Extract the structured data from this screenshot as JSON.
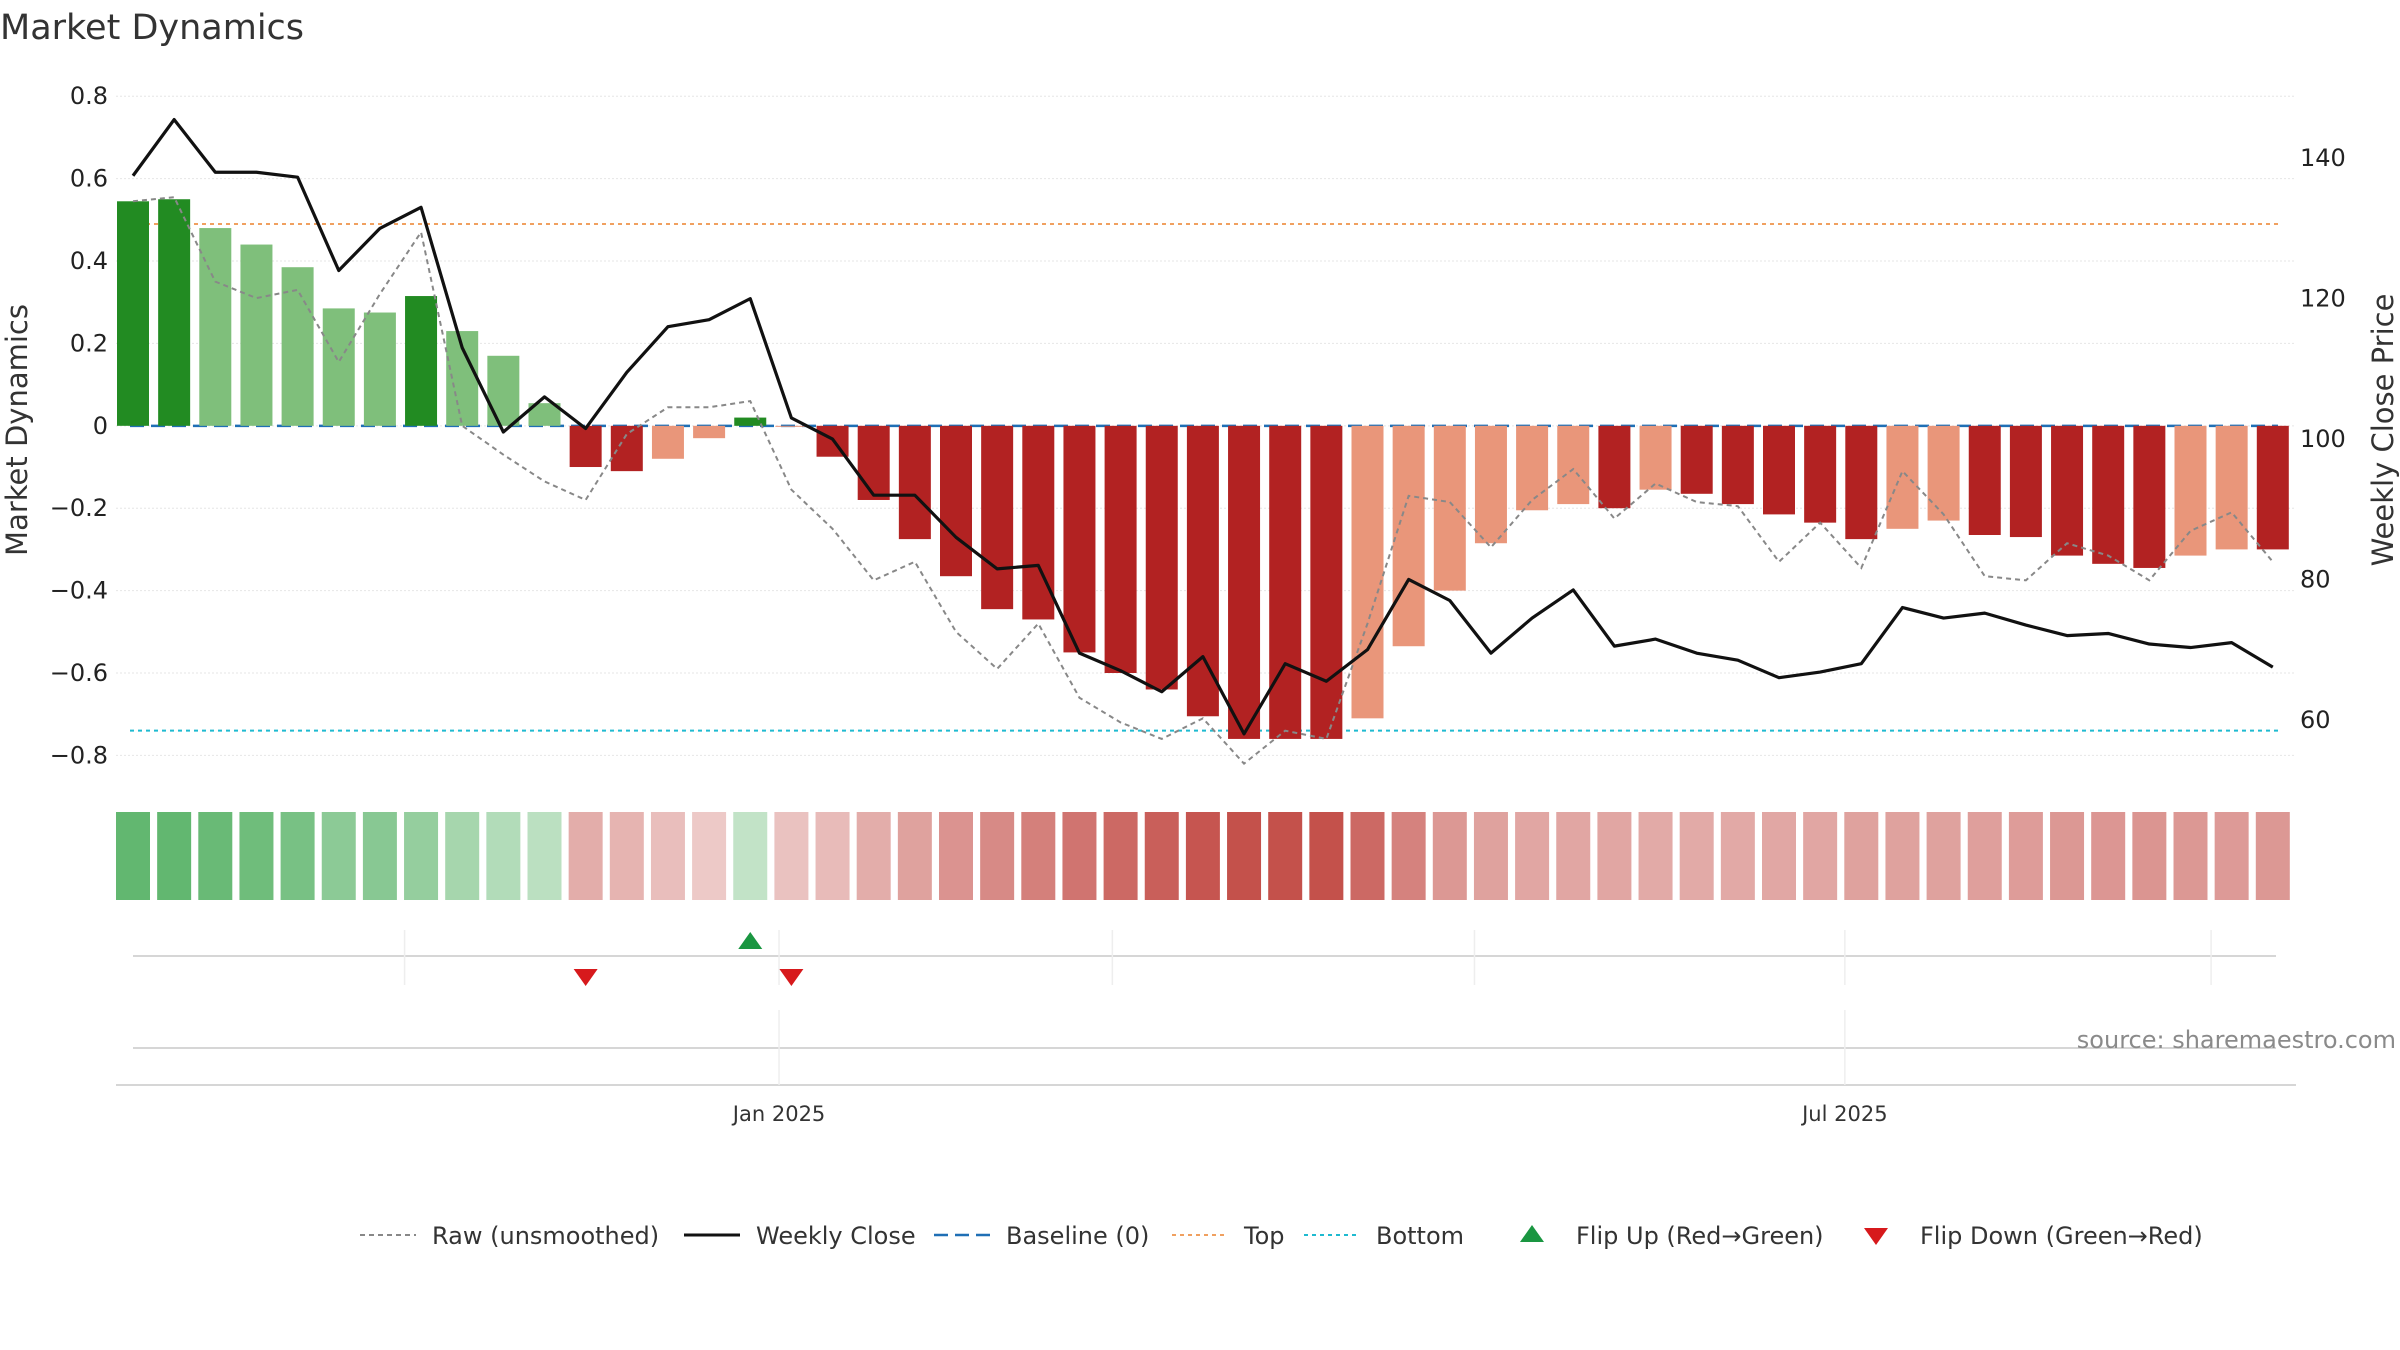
{
  "chart_data": {
    "type": "bar",
    "title": "Market Dynamics",
    "ylabel": "Market Dynamics",
    "y2label": "Weekly Close Price",
    "ylim": [
      -0.85,
      0.82
    ],
    "y2lim": [
      52,
      150
    ],
    "yticks": [
      -0.8,
      -0.6,
      -0.4,
      -0.2,
      0,
      0.2,
      0.4,
      0.6,
      0.8
    ],
    "ytick_labels": [
      "−0.8",
      "−0.6",
      "−0.4",
      "−0.2",
      "0",
      "0.2",
      "0.4",
      "0.6",
      "0.8"
    ],
    "y2ticks": [
      60,
      80,
      100,
      120,
      140
    ],
    "y2tick_labels": [
      "60",
      "80",
      "100",
      "120",
      "140"
    ],
    "weeks": 53,
    "xticks": [
      {
        "label": "Jan 2025",
        "week": 15.7
      },
      {
        "label": "Jul 2025",
        "week": 41.6
      }
    ],
    "week_gridlines": [
      6.6,
      15.7,
      23.8,
      32.6,
      41.6,
      50.5
    ],
    "top_threshold": 0.49,
    "bottom_threshold": -0.74,
    "baseline": 0,
    "series": [
      {
        "name": "Market Dynamics",
        "kind": "bar",
        "values": [
          0.545,
          0.55,
          0.48,
          0.44,
          0.385,
          0.285,
          0.275,
          0.315,
          0.23,
          0.17,
          0.055,
          -0.1,
          -0.11,
          -0.08,
          -0.03,
          0.02,
          0.0,
          -0.075,
          -0.18,
          -0.275,
          -0.365,
          -0.445,
          -0.47,
          -0.55,
          -0.6,
          -0.64,
          -0.705,
          -0.76,
          -0.76,
          -0.76,
          -0.71,
          -0.535,
          -0.4,
          -0.285,
          -0.205,
          -0.19,
          -0.2,
          -0.155,
          -0.165,
          -0.19,
          -0.215,
          -0.235,
          -0.275,
          -0.25,
          -0.23,
          -0.265,
          -0.27,
          -0.315,
          -0.335,
          -0.345,
          -0.315,
          -0.3,
          -0.3
        ],
        "color_class": [
          "sg",
          "sg",
          "lg",
          "lg",
          "lg",
          "lg",
          "lg",
          "sg",
          "lg",
          "lg",
          "lg",
          "sr",
          "sr",
          "lr",
          "lr",
          "sg",
          "lr",
          "sr",
          "sr",
          "sr",
          "sr",
          "sr",
          "sr",
          "sr",
          "sr",
          "sr",
          "sr",
          "sr",
          "sr",
          "sr",
          "lr",
          "lr",
          "lr",
          "lr",
          "lr",
          "lr",
          "sr",
          "lr",
          "sr",
          "sr",
          "sr",
          "sr",
          "sr",
          "lr",
          "lr",
          "sr",
          "sr",
          "sr",
          "sr",
          "sr",
          "lr",
          "lr",
          "sr"
        ]
      },
      {
        "name": "Raw (unsmoothed)",
        "kind": "line",
        "values": [
          0.545,
          0.555,
          0.35,
          0.31,
          0.33,
          0.155,
          0.32,
          0.47,
          0.0,
          -0.07,
          -0.135,
          -0.18,
          -0.02,
          0.045,
          0.045,
          0.06,
          -0.155,
          -0.25,
          -0.375,
          -0.33,
          -0.5,
          -0.59,
          -0.48,
          -0.66,
          -0.72,
          -0.76,
          -0.71,
          -0.82,
          -0.74,
          -0.76,
          -0.48,
          -0.17,
          -0.185,
          -0.295,
          -0.18,
          -0.105,
          -0.225,
          -0.14,
          -0.185,
          -0.195,
          -0.33,
          -0.235,
          -0.345,
          -0.11,
          -0.215,
          -0.365,
          -0.375,
          -0.285,
          -0.315,
          -0.375,
          -0.255,
          -0.21,
          -0.33
        ]
      },
      {
        "name": "Weekly Close",
        "kind": "line",
        "values": [
          137.5,
          145.5,
          138,
          138,
          137.3,
          124,
          130,
          133,
          113,
          101,
          106,
          101.5,
          109.5,
          116,
          117,
          120,
          103,
          100,
          92,
          92,
          86,
          81.5,
          82,
          69.5,
          67,
          64,
          69,
          58,
          68,
          65.5,
          70,
          80,
          77,
          69.5,
          74.5,
          78.5,
          70.5,
          71.5,
          69.5,
          68.5,
          66,
          66.8,
          68,
          76,
          74.5,
          75.2,
          73.5,
          72,
          72.3,
          70.8,
          70.3,
          71,
          67.5
        ]
      },
      {
        "name": "Momentum strip",
        "kind": "heat",
        "values": [
          0.95,
          0.95,
          0.9,
          0.85,
          0.78,
          0.62,
          0.65,
          0.55,
          0.42,
          0.32,
          0.25,
          -0.3,
          -0.25,
          -0.18,
          -0.1,
          0.2,
          -0.15,
          -0.2,
          -0.3,
          -0.38,
          -0.48,
          -0.55,
          -0.62,
          -0.7,
          -0.78,
          -0.85,
          -0.92,
          -0.95,
          -0.95,
          -0.95,
          -0.78,
          -0.6,
          -0.45,
          -0.38,
          -0.35,
          -0.35,
          -0.35,
          -0.32,
          -0.32,
          -0.33,
          -0.34,
          -0.35,
          -0.38,
          -0.38,
          -0.38,
          -0.4,
          -0.42,
          -0.45,
          -0.46,
          -0.47,
          -0.45,
          -0.43,
          -0.45
        ]
      }
    ],
    "flips": [
      {
        "type": "down",
        "week": 11
      },
      {
        "type": "up",
        "week": 15
      },
      {
        "type": "down",
        "week": 16
      }
    ],
    "legend": {
      "placement": "bottom-center",
      "items": [
        {
          "label": "Raw (unsmoothed)",
          "symbol": "dashed-gray"
        },
        {
          "label": "Weekly Close",
          "symbol": "solid-black"
        },
        {
          "label": "Baseline (0)",
          "symbol": "dashed-blue"
        },
        {
          "label": "Top",
          "symbol": "dotted-orange"
        },
        {
          "label": "Bottom",
          "symbol": "dotted-cyan"
        },
        {
          "label": "Flip Up (Red→Green)",
          "symbol": "triangle-up-green"
        },
        {
          "label": "Flip Down (Green→Red)",
          "symbol": "triangle-down-red"
        }
      ]
    },
    "colors": {
      "strong_green": "#228b22",
      "light_green": "#7fbf7b",
      "strong_red": "#b22222",
      "light_red": "#e9967a",
      "raw_line": "#888888",
      "close_line": "#111111",
      "baseline": "#1f6fb5",
      "top": "#f0a060",
      "bottom": "#1fbad0",
      "flip_up": "#1a9641",
      "flip_down": "#d7191c",
      "grid": "#e6e6e6"
    }
  },
  "source": "source: sharemaestro.com"
}
